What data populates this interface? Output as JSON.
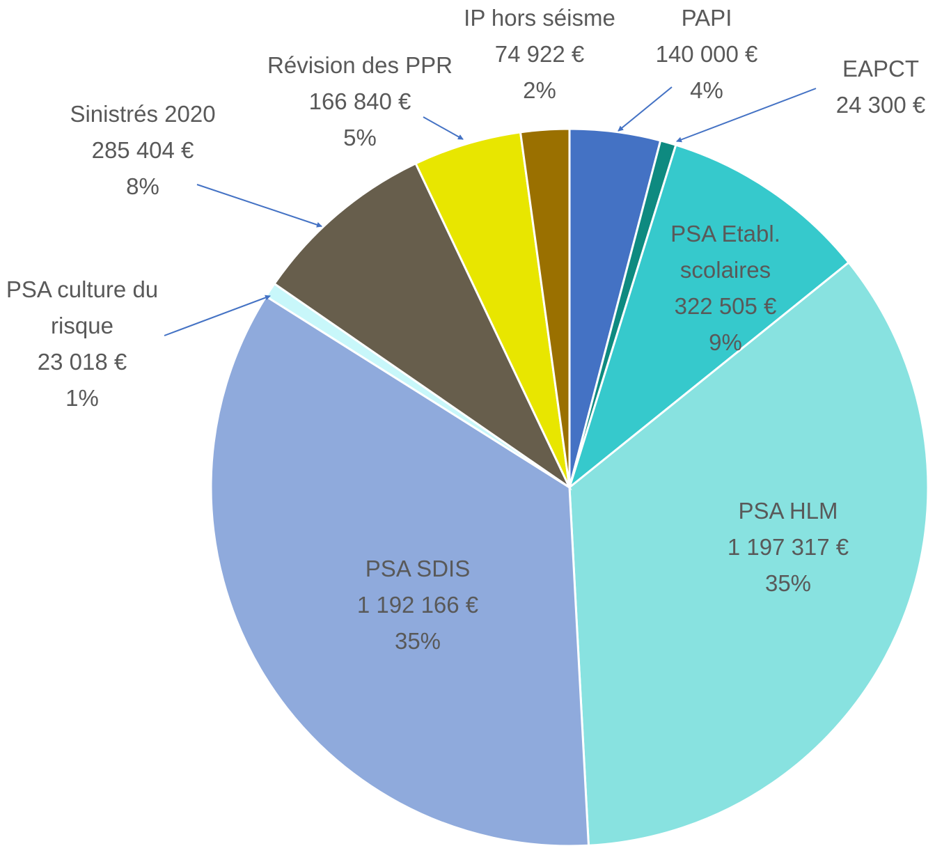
{
  "chart_data": {
    "type": "pie",
    "categories": [
      "PAPI",
      "EAPCT",
      "PSA Etabl. scolaires",
      "PSA HLM",
      "PSA SDIS",
      "PSA culture du risque",
      "Sinistrés 2020",
      "Révision des PPR",
      "IP hors séisme"
    ],
    "values": [
      140000,
      24300,
      322505,
      1197317,
      1192166,
      23018,
      285404,
      166840,
      74922
    ],
    "value_labels": [
      "140 000 €",
      "24 300 €",
      "322 505 €",
      "1 197 317 €",
      "1 192 166 €",
      "23 018 €",
      "285 404 €",
      "166 840 €",
      "74 922 €"
    ],
    "percent_labels": [
      "4%",
      null,
      "9%",
      "35%",
      "35%",
      "1%",
      "8%",
      "5%",
      "2%"
    ],
    "colors": [
      "#4472c4",
      "#0e8a80",
      "#36c9cc",
      "#88e2e0",
      "#8faadc",
      "#c8f7fa",
      "#675e4c",
      "#e8e600",
      "#9a7000"
    ]
  }
}
